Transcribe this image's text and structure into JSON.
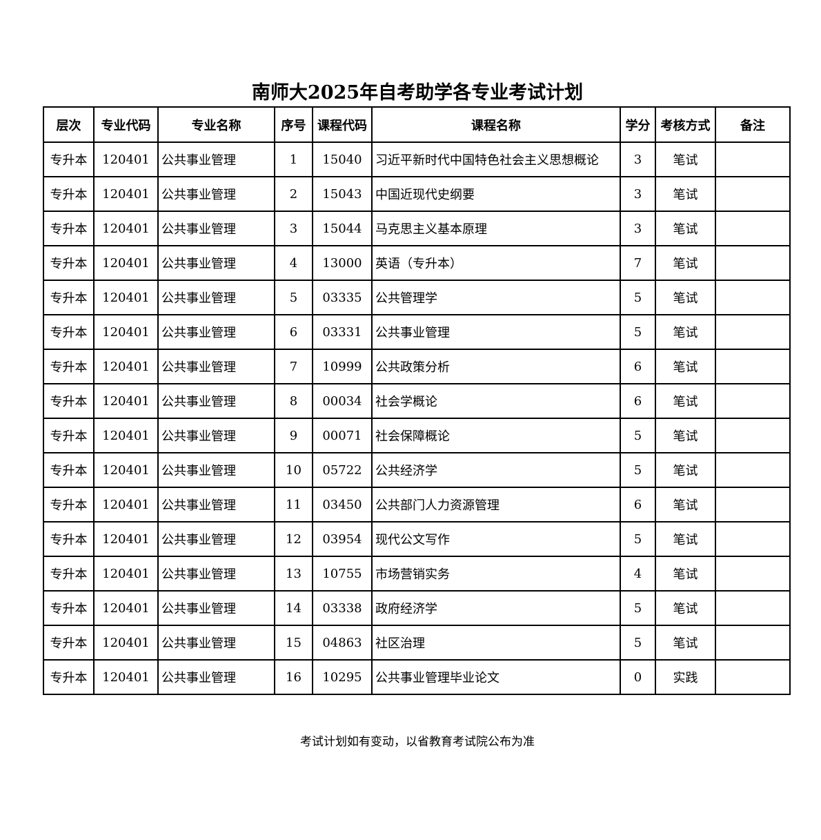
{
  "title": "南师大2025年自考助学各专业考试计划",
  "columns": [
    "层次",
    "专业代码",
    "专业名称",
    "序号",
    "课程代码",
    "课程名称",
    "学分",
    "考核方式",
    "备注"
  ],
  "rows": [
    [
      "专升本",
      "120401",
      "公共事业管理",
      "1",
      "15040",
      "习近平新时代中国特色社会主义思想概论",
      "3",
      "笔试",
      ""
    ],
    [
      "专升本",
      "120401",
      "公共事业管理",
      "2",
      "15043",
      "中国近现代史纲要",
      "3",
      "笔试",
      ""
    ],
    [
      "专升本",
      "120401",
      "公共事业管理",
      "3",
      "15044",
      "马克思主义基本原理",
      "3",
      "笔试",
      ""
    ],
    [
      "专升本",
      "120401",
      "公共事业管理",
      "4",
      "13000",
      "英语（专升本）",
      "7",
      "笔试",
      ""
    ],
    [
      "专升本",
      "120401",
      "公共事业管理",
      "5",
      "03335",
      "公共管理学",
      "5",
      "笔试",
      ""
    ],
    [
      "专升本",
      "120401",
      "公共事业管理",
      "6",
      "03331",
      "公共事业管理",
      "5",
      "笔试",
      ""
    ],
    [
      "专升本",
      "120401",
      "公共事业管理",
      "7",
      "10999",
      "公共政策分析",
      "6",
      "笔试",
      ""
    ],
    [
      "专升本",
      "120401",
      "公共事业管理",
      "8",
      "00034",
      "社会学概论",
      "6",
      "笔试",
      ""
    ],
    [
      "专升本",
      "120401",
      "公共事业管理",
      "9",
      "00071",
      "社会保障概论",
      "5",
      "笔试",
      ""
    ],
    [
      "专升本",
      "120401",
      "公共事业管理",
      "10",
      "05722",
      "公共经济学",
      "5",
      "笔试",
      ""
    ],
    [
      "专升本",
      "120401",
      "公共事业管理",
      "11",
      "03450",
      "公共部门人力资源管理",
      "6",
      "笔试",
      ""
    ],
    [
      "专升本",
      "120401",
      "公共事业管理",
      "12",
      "03954",
      "现代公文写作",
      "5",
      "笔试",
      ""
    ],
    [
      "专升本",
      "120401",
      "公共事业管理",
      "13",
      "10755",
      "市场营销实务",
      "4",
      "笔试",
      ""
    ],
    [
      "专升本",
      "120401",
      "公共事业管理",
      "14",
      "03338",
      "政府经济学",
      "5",
      "笔试",
      ""
    ],
    [
      "专升本",
      "120401",
      "公共事业管理",
      "15",
      "04863",
      "社区治理",
      "5",
      "笔试",
      ""
    ],
    [
      "专升本",
      "120401",
      "公共事业管理",
      "16",
      "10295",
      "公共事业管理毕业论文",
      "0",
      "实践",
      ""
    ]
  ],
  "note": "考试计划如有变动，以省教育考试院公布为准"
}
